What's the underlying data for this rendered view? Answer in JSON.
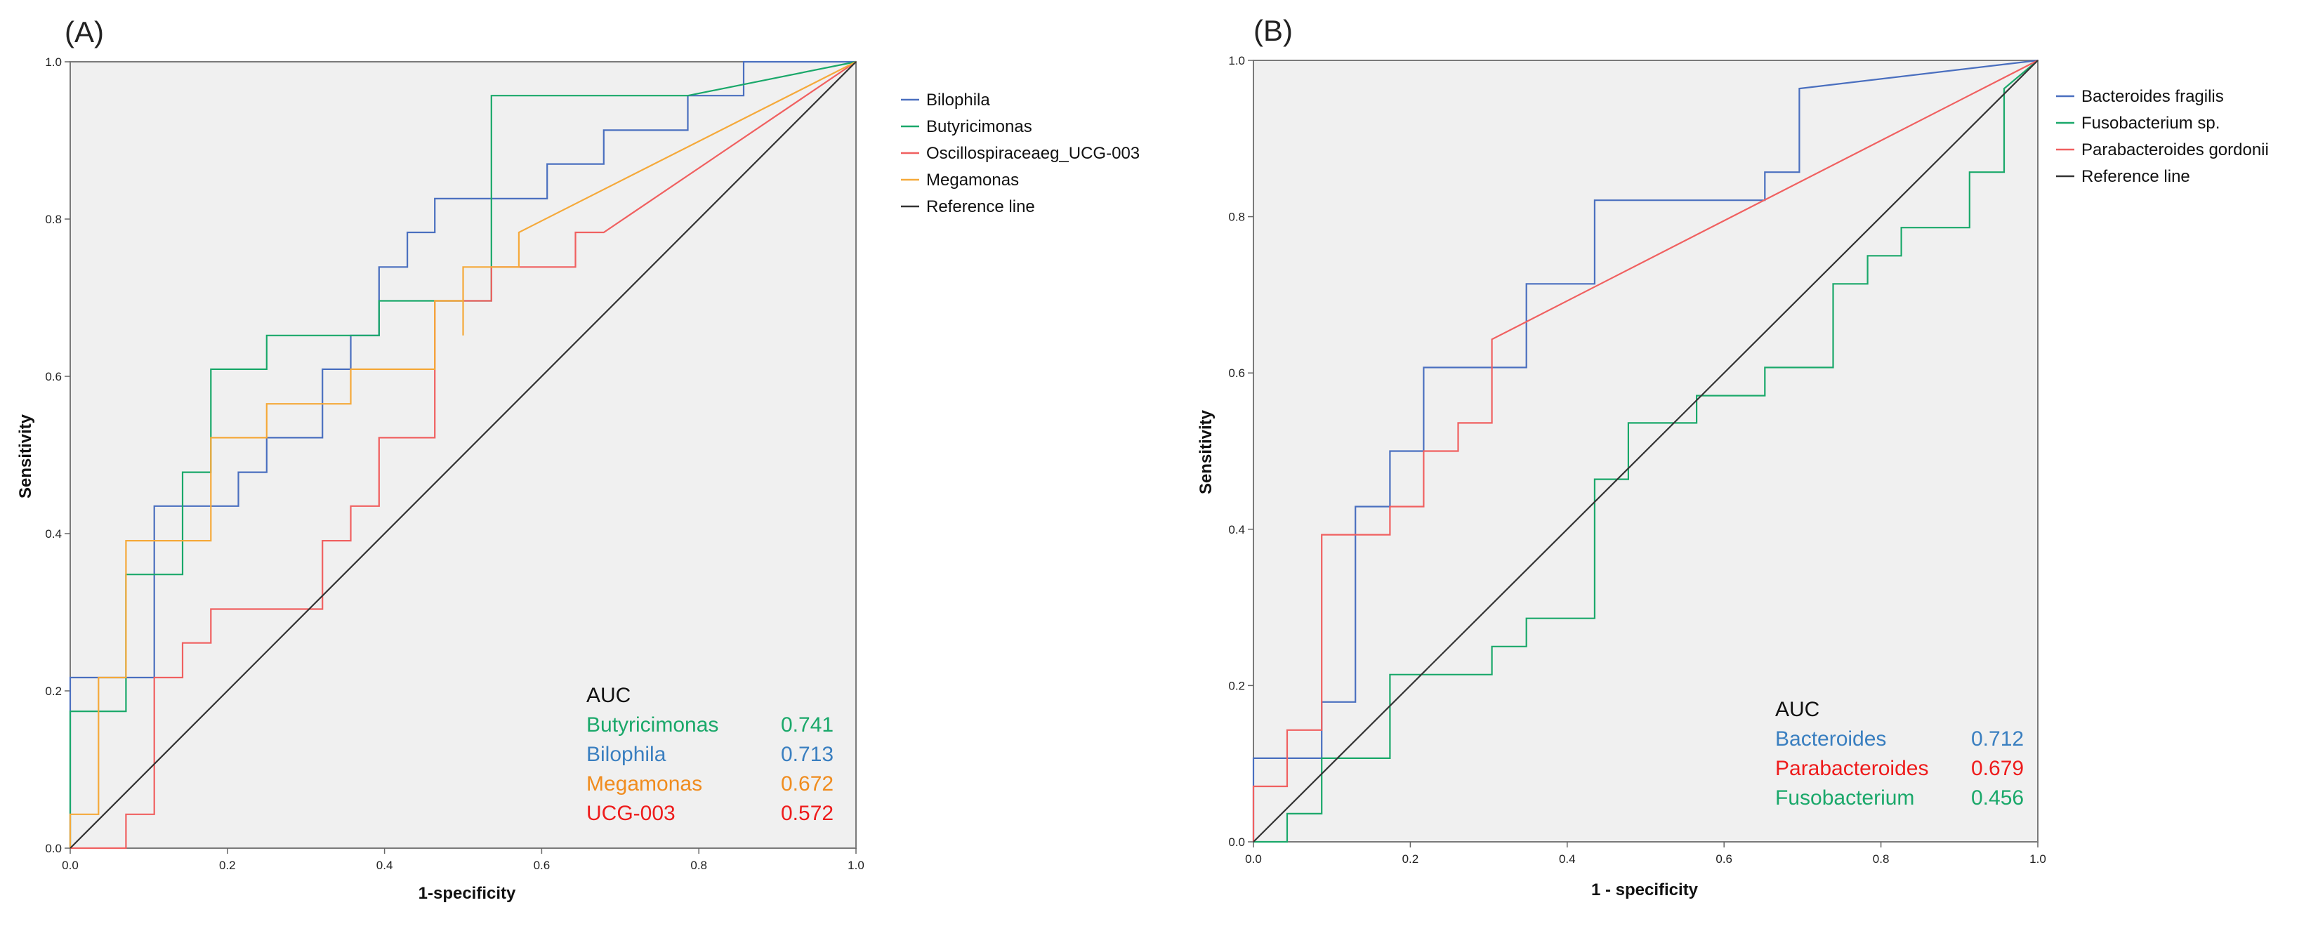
{
  "panels": [
    {
      "panel_label": "(A)",
      "xlabel": "1-specificity",
      "ylabel": "Sensitivity"
    },
    {
      "panel_label": "(B)",
      "xlabel": "1 - specificity",
      "ylabel": "Sensitivity"
    }
  ],
  "chart_data": [
    {
      "type": "line",
      "title": "",
      "xlabel": "1-specificity",
      "ylabel": "Sensitivity",
      "xlim": [
        0,
        1
      ],
      "ylim": [
        0,
        1
      ],
      "x_ticks": [
        "0.0",
        "0.2",
        "0.4",
        "0.6",
        "0.8",
        "1.0"
      ],
      "y_ticks": [
        "0.0",
        "0.2",
        "0.4",
        "0.6",
        "0.8",
        "1.0"
      ],
      "plot_background": "#f0f0f0",
      "legend_position": "right",
      "series": [
        {
          "name": "Bilophila",
          "color": "#4a6fbf",
          "points": [
            [
              0,
              0
            ],
            [
              0,
              0.217
            ],
            [
              0.107,
              0.217
            ],
            [
              0.107,
              0.435
            ],
            [
              0.214,
              0.435
            ],
            [
              0.214,
              0.478
            ],
            [
              0.25,
              0.478
            ],
            [
              0.25,
              0.522
            ],
            [
              0.321,
              0.522
            ],
            [
              0.321,
              0.609
            ],
            [
              0.357,
              0.609
            ],
            [
              0.357,
              0.652
            ],
            [
              0.393,
              0.652
            ],
            [
              0.393,
              0.739
            ],
            [
              0.429,
              0.739
            ],
            [
              0.429,
              0.783
            ],
            [
              0.464,
              0.783
            ],
            [
              0.464,
              0.826
            ],
            [
              0.607,
              0.826
            ],
            [
              0.607,
              0.87
            ],
            [
              0.679,
              0.87
            ],
            [
              0.679,
              0.913
            ],
            [
              0.786,
              0.913
            ],
            [
              0.786,
              0.957
            ],
            [
              0.857,
              0.957
            ],
            [
              0.857,
              1.0
            ],
            [
              1.0,
              1.0
            ]
          ]
        },
        {
          "name": "Butyricimonas",
          "color": "#1aa86a",
          "points": [
            [
              0,
              0
            ],
            [
              0,
              0.174
            ],
            [
              0.071,
              0.174
            ],
            [
              0.071,
              0.348
            ],
            [
              0.143,
              0.348
            ],
            [
              0.143,
              0.478
            ],
            [
              0.179,
              0.478
            ],
            [
              0.179,
              0.609
            ],
            [
              0.25,
              0.609
            ],
            [
              0.25,
              0.652
            ],
            [
              0.393,
              0.652
            ],
            [
              0.393,
              0.696
            ],
            [
              0.536,
              0.696
            ],
            [
              0.536,
              0.957
            ],
            [
              0.786,
              0.957
            ],
            [
              1.0,
              1.0
            ]
          ]
        },
        {
          "name": "Oscillospiraceaeg_UCG-003",
          "color": "#f06060",
          "points": [
            [
              0,
              0
            ],
            [
              0.071,
              0
            ],
            [
              0.071,
              0.043
            ],
            [
              0.107,
              0.043
            ],
            [
              0.107,
              0.217
            ],
            [
              0.143,
              0.217
            ],
            [
              0.143,
              0.261
            ],
            [
              0.179,
              0.261
            ],
            [
              0.179,
              0.304
            ],
            [
              0.321,
              0.304
            ],
            [
              0.321,
              0.391
            ],
            [
              0.357,
              0.391
            ],
            [
              0.357,
              0.435
            ],
            [
              0.393,
              0.435
            ],
            [
              0.393,
              0.522
            ],
            [
              0.464,
              0.522
            ],
            [
              0.464,
              0.696
            ],
            [
              0.536,
              0.696
            ],
            [
              0.536,
              0.739
            ],
            [
              0.643,
              0.739
            ],
            [
              0.643,
              0.783
            ],
            [
              0.679,
              0.783
            ],
            [
              1.0,
              1.0
            ]
          ]
        },
        {
          "name": "Megamonas",
          "color": "#f5a93a",
          "points": [
            [
              0,
              0
            ],
            [
              0,
              0.043
            ],
            [
              0.036,
              0.043
            ],
            [
              0.036,
              0.217
            ],
            [
              0.071,
              0.217
            ],
            [
              0.071,
              0.391
            ],
            [
              0.179,
              0.391
            ],
            [
              0.179,
              0.522
            ],
            [
              0.25,
              0.522
            ],
            [
              0.25,
              0.565
            ],
            [
              0.357,
              0.565
            ],
            [
              0.357,
              0.609
            ],
            [
              0.464,
              0.609
            ],
            [
              0.464,
              0.696
            ],
            [
              0.5,
              0.696
            ],
            [
              0.5,
              0.652
            ],
            [
              0.5,
              0.739
            ],
            [
              0.571,
              0.739
            ],
            [
              0.571,
              0.783
            ],
            [
              1.0,
              1.0
            ]
          ]
        },
        {
          "name": "Reference line",
          "color": "#333333",
          "points": [
            [
              0,
              0
            ],
            [
              1,
              1
            ]
          ]
        }
      ],
      "annotation": {
        "header": "AUC",
        "rows": [
          {
            "label": "Butyricimonas",
            "value": "0.741",
            "color": "#1aa86a"
          },
          {
            "label": "Bilophila",
            "value": "0.713",
            "color": "#3a7fc0"
          },
          {
            "label": "Megamonas",
            "value": "0.672",
            "color": "#f08c1e"
          },
          {
            "label": "UCG-003",
            "value": "0.572",
            "color": "#ee1c1c"
          }
        ]
      }
    },
    {
      "type": "line",
      "title": "",
      "xlabel": "1 - specificity",
      "ylabel": "Sensitivity",
      "xlim": [
        0,
        1
      ],
      "ylim": [
        0,
        1
      ],
      "x_ticks": [
        "0.0",
        "0.2",
        "0.4",
        "0.6",
        "0.8",
        "1.0"
      ],
      "y_ticks": [
        "0.0",
        "0.2",
        "0.4",
        "0.6",
        "0.8",
        "1.0"
      ],
      "plot_background": "#f0f0f0",
      "legend_position": "right",
      "series": [
        {
          "name": "Bacteroides fragilis",
          "color": "#4a6fbf",
          "points": [
            [
              0,
              0
            ],
            [
              0,
              0.107
            ],
            [
              0.087,
              0.107
            ],
            [
              0.087,
              0.179
            ],
            [
              0.13,
              0.179
            ],
            [
              0.13,
              0.429
            ],
            [
              0.174,
              0.429
            ],
            [
              0.174,
              0.5
            ],
            [
              0.217,
              0.5
            ],
            [
              0.217,
              0.607
            ],
            [
              0.348,
              0.607
            ],
            [
              0.348,
              0.714
            ],
            [
              0.435,
              0.714
            ],
            [
              0.435,
              0.821
            ],
            [
              0.652,
              0.821
            ],
            [
              0.652,
              0.857
            ],
            [
              0.696,
              0.857
            ],
            [
              0.696,
              0.964
            ],
            [
              1.0,
              1.0
            ]
          ]
        },
        {
          "name": "Fusobacterium sp.",
          "color": "#1aa86a",
          "points": [
            [
              0,
              0
            ],
            [
              0.043,
              0
            ],
            [
              0.043,
              0.036
            ],
            [
              0.087,
              0.036
            ],
            [
              0.087,
              0.107
            ],
            [
              0.174,
              0.107
            ],
            [
              0.174,
              0.214
            ],
            [
              0.304,
              0.214
            ],
            [
              0.304,
              0.25
            ],
            [
              0.348,
              0.25
            ],
            [
              0.348,
              0.286
            ],
            [
              0.435,
              0.286
            ],
            [
              0.435,
              0.464
            ],
            [
              0.478,
              0.464
            ],
            [
              0.478,
              0.536
            ],
            [
              0.565,
              0.536
            ],
            [
              0.565,
              0.571
            ],
            [
              0.652,
              0.571
            ],
            [
              0.652,
              0.607
            ],
            [
              0.739,
              0.607
            ],
            [
              0.739,
              0.714
            ],
            [
              0.783,
              0.714
            ],
            [
              0.783,
              0.75
            ],
            [
              0.826,
              0.75
            ],
            [
              0.826,
              0.786
            ],
            [
              0.913,
              0.786
            ],
            [
              0.913,
              0.857
            ],
            [
              0.957,
              0.857
            ],
            [
              0.957,
              0.964
            ],
            [
              1.0,
              1.0
            ]
          ]
        },
        {
          "name": "Parabacteroides gordonii",
          "color": "#f06060",
          "points": [
            [
              0,
              0
            ],
            [
              0,
              0.071
            ],
            [
              0.043,
              0.071
            ],
            [
              0.043,
              0.143
            ],
            [
              0.087,
              0.143
            ],
            [
              0.087,
              0.393
            ],
            [
              0.174,
              0.393
            ],
            [
              0.174,
              0.429
            ],
            [
              0.217,
              0.429
            ],
            [
              0.217,
              0.5
            ],
            [
              0.261,
              0.5
            ],
            [
              0.261,
              0.536
            ],
            [
              0.304,
              0.536
            ],
            [
              0.304,
              0.643
            ],
            [
              1.0,
              1.0
            ]
          ]
        },
        {
          "name": "Reference line",
          "color": "#333333",
          "points": [
            [
              0,
              0
            ],
            [
              1,
              1
            ]
          ]
        }
      ],
      "annotation": {
        "header": "AUC",
        "rows": [
          {
            "label": "Bacteroides",
            "value": "0.712",
            "color": "#3a7fc0"
          },
          {
            "label": "Parabacteroides",
            "value": "0.679",
            "color": "#ee1c1c"
          },
          {
            "label": "Fusobacterium",
            "value": "0.456",
            "color": "#1aa86a"
          }
        ]
      }
    }
  ]
}
